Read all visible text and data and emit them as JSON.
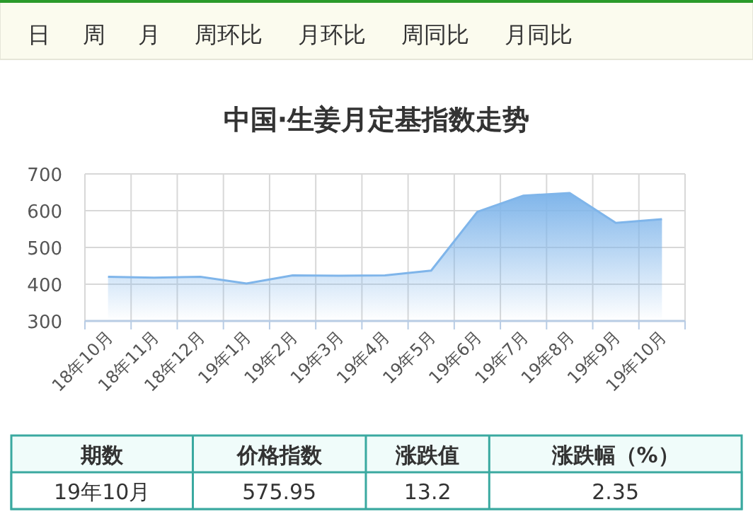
{
  "chart_data": [
    {
      "type": "other",
      "annotations": [
        "日",
        "周",
        "月",
        "周环比",
        "月环比",
        "周同比",
        "月同比"
      ]
    },
    {
      "type": "area",
      "title": "中国·生姜月定基指数走势",
      "categories": [
        "18年10月",
        "18年11月",
        "18年12月",
        "19年1月",
        "19年2月",
        "19年3月",
        "19年4月",
        "19年5月",
        "19年6月",
        "19年7月",
        "19年8月",
        "19年9月",
        "19年10月"
      ],
      "series": [
        {
          "color": "#7fb5ea",
          "values": [
            420,
            418,
            420,
            402,
            424,
            423,
            424,
            437,
            597,
            641,
            648,
            567,
            577
          ]
        }
      ],
      "ylim": [
        300,
        700
      ],
      "yticks": [
        300,
        400,
        500,
        600,
        700
      ],
      "grid": true,
      "marker": "none"
    },
    {
      "type": "other",
      "annotations": [
        "期数",
        "价格指数",
        "涨跌值",
        "涨跌幅（%）",
        "19年10月",
        "575.95",
        "13.2",
        "2.35"
      ]
    }
  ]
}
